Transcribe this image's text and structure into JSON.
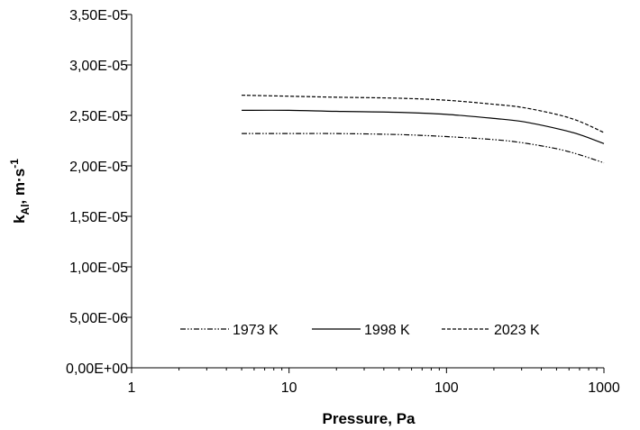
{
  "chart_data": {
    "type": "line",
    "xlabel": "Pressure, Pa",
    "ylabel": {
      "base": "k",
      "subscript": "Al",
      "after": ", m·s",
      "superscript": "-1"
    },
    "x_scale": "log",
    "xlim": [
      1,
      1000
    ],
    "ylim": [
      0,
      3.5e-05
    ],
    "x_ticks": [
      1,
      10,
      100,
      1000
    ],
    "x_tick_labels": [
      "1",
      "10",
      "100",
      "1000"
    ],
    "y_ticks": [
      0,
      5e-06,
      1e-05,
      1.5e-05,
      2e-05,
      2.5e-05,
      3e-05,
      3.5e-05
    ],
    "y_tick_labels": [
      "0,00E+00",
      "5,00E-06",
      "1,00E-05",
      "1,50E-05",
      "2,00E-05",
      "2,50E-05",
      "3,00E-05",
      "3,50E-05"
    ],
    "grid": false,
    "legend_position": "bottom-center",
    "series": [
      {
        "name": "1973 K",
        "line_style": "dash-dot-dot",
        "x": [
          5,
          10,
          20,
          50,
          100,
          200,
          300,
          500,
          700,
          1000
        ],
        "y": [
          2.32e-05,
          2.32e-05,
          2.32e-05,
          2.31e-05,
          2.29e-05,
          2.26e-05,
          2.23e-05,
          2.17e-05,
          2.11e-05,
          2.03e-05
        ]
      },
      {
        "name": "1998 K",
        "line_style": "solid",
        "x": [
          5,
          10,
          20,
          50,
          100,
          200,
          300,
          500,
          700,
          1000
        ],
        "y": [
          2.55e-05,
          2.55e-05,
          2.54e-05,
          2.53e-05,
          2.51e-05,
          2.47e-05,
          2.44e-05,
          2.37e-05,
          2.31e-05,
          2.22e-05
        ]
      },
      {
        "name": "2023 K",
        "line_style": "dashed",
        "x": [
          5,
          10,
          20,
          50,
          100,
          200,
          300,
          500,
          700,
          1000
        ],
        "y": [
          2.7e-05,
          2.69e-05,
          2.68e-05,
          2.67e-05,
          2.65e-05,
          2.61e-05,
          2.58e-05,
          2.51e-05,
          2.44e-05,
          2.33e-05
        ]
      }
    ]
  }
}
